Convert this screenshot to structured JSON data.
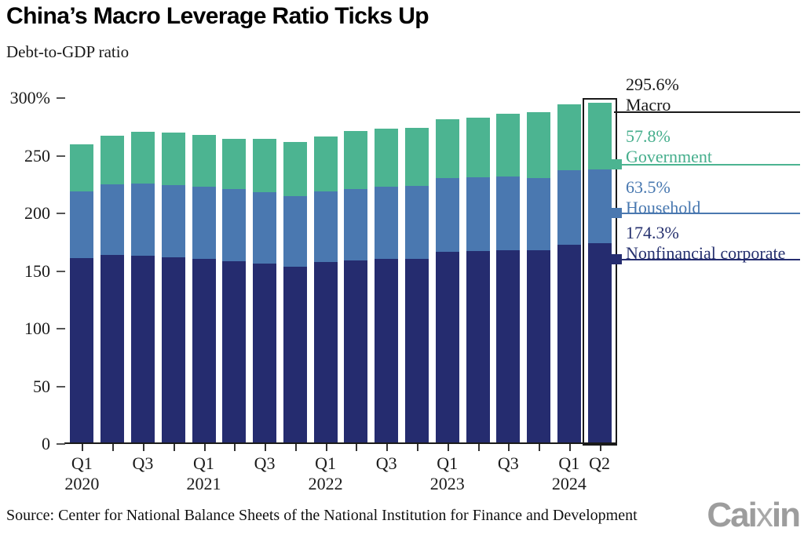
{
  "chart_data": {
    "type": "bar",
    "stacked": true,
    "title": "China’s Macro Leverage Ratio Ticks Up",
    "subtitle": "Debt-to-GDP ratio",
    "xlabel": "",
    "ylabel": "",
    "ylim": [
      0,
      300
    ],
    "grid": false,
    "legend_position": "right-callouts",
    "categories": [
      "2020 Q1",
      "2020 Q2",
      "2020 Q3",
      "2020 Q4",
      "2021 Q1",
      "2021 Q2",
      "2021 Q3",
      "2021 Q4",
      "2022 Q1",
      "2022 Q2",
      "2022 Q3",
      "2022 Q4",
      "2023 Q1",
      "2023 Q2",
      "2023 Q3",
      "2023 Q4",
      "2024 Q1",
      "2024 Q2"
    ],
    "series": [
      {
        "name": "Nonfinancial corporate",
        "color": "#252C6F",
        "values": [
          161.0,
          164.0,
          163.5,
          162.0,
          160.8,
          158.2,
          156.2,
          153.5,
          157.5,
          159.2,
          160.6,
          160.8,
          166.5,
          167.5,
          168.3,
          167.8,
          173.0,
          174.3
        ]
      },
      {
        "name": "Household",
        "color": "#4A78B0",
        "values": [
          58.2,
          61.0,
          62.5,
          62.5,
          62.5,
          63.2,
          62.3,
          61.8,
          61.8,
          62.2,
          62.8,
          62.8,
          64.0,
          63.5,
          64.0,
          63.0,
          64.5,
          63.5
        ]
      },
      {
        "name": "Government",
        "color": "#4CB491",
        "values": [
          40.8,
          42.5,
          45.0,
          45.6,
          45.0,
          43.5,
          46.0,
          46.6,
          47.4,
          50.3,
          50.1,
          50.4,
          51.3,
          52.0,
          54.1,
          56.7,
          56.8,
          57.8
        ]
      }
    ],
    "totals": [
      260.0,
      267.5,
      271.0,
      270.1,
      268.3,
      264.9,
      264.5,
      261.9,
      266.7,
      271.7,
      273.5,
      274.0,
      281.8,
      283.0,
      286.4,
      287.5,
      294.3,
      295.6
    ],
    "yticks": [
      {
        "label": "300%",
        "value": 300
      },
      {
        "label": "250",
        "value": 250
      },
      {
        "label": "200",
        "value": 200
      },
      {
        "label": "150",
        "value": 150
      },
      {
        "label": "100",
        "value": 100
      },
      {
        "label": "50",
        "value": 50
      },
      {
        "label": "0",
        "value": 0
      }
    ],
    "xticks": [
      {
        "index": 0,
        "line1": "Q1",
        "line2": "2020"
      },
      {
        "index": 2,
        "line1": "Q3",
        "line2": ""
      },
      {
        "index": 4,
        "line1": "Q1",
        "line2": "2021"
      },
      {
        "index": 6,
        "line1": "Q3",
        "line2": ""
      },
      {
        "index": 8,
        "line1": "Q1",
        "line2": "2022"
      },
      {
        "index": 10,
        "line1": "Q3",
        "line2": ""
      },
      {
        "index": 12,
        "line1": "Q1",
        "line2": "2023"
      },
      {
        "index": 14,
        "line1": "Q3",
        "line2": ""
      },
      {
        "index": 16,
        "line1": "Q1",
        "line2": "2024"
      },
      {
        "index": 17,
        "line1": "Q2",
        "line2": ""
      }
    ],
    "highlight_index": 17,
    "callouts": {
      "macro": {
        "value": "295.6%",
        "label": "Macro",
        "color": "#1a1a1a",
        "line_color": "#1a1a1a"
      },
      "government": {
        "value": "57.8%",
        "label": "Government",
        "color": "#45AE8C",
        "line_color": "#4CB491"
      },
      "household": {
        "value": "63.5%",
        "label": "Household",
        "color": "#4878B0",
        "line_color": "#4A78B0"
      },
      "nonfinancial": {
        "value": "174.3%",
        "label": "Nonfinancial corporate",
        "color": "#26316F",
        "line_color": "#252C6F"
      }
    }
  },
  "footer": {
    "source": "Source: Center for National Balance Sheets of the National Institution for Finance and Development",
    "logo_parts": [
      "Cai",
      "x",
      "in"
    ]
  }
}
